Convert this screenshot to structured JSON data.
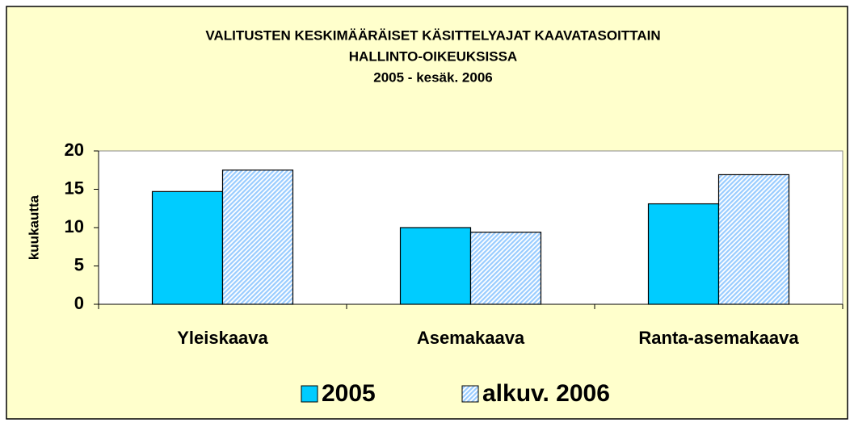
{
  "chart_data": {
    "type": "bar",
    "title": [
      "VALITUSTEN KESKIMÄÄRÄISET KÄSITTELYAJAT KAAVATASOITTAIN",
      "HALLINTO-OIKEUKSISSA",
      "2005 - kesäk. 2006"
    ],
    "y_label": "kuukautta",
    "categories": [
      "Yleiskaava",
      "Asemakaava",
      "Ranta-asemakaava"
    ],
    "series": [
      {
        "name": "2005",
        "color": "#00ccff",
        "values": [
          14.7,
          10.0,
          13.1
        ]
      },
      {
        "name": "alkuv. 2006",
        "color": "#99ccff",
        "hatched": true,
        "values": [
          17.5,
          9.4,
          16.9
        ]
      }
    ],
    "ylim": [
      0,
      20
    ],
    "yticks": [
      0,
      5,
      10,
      15,
      20
    ],
    "grid": false,
    "legend": "bottom"
  }
}
